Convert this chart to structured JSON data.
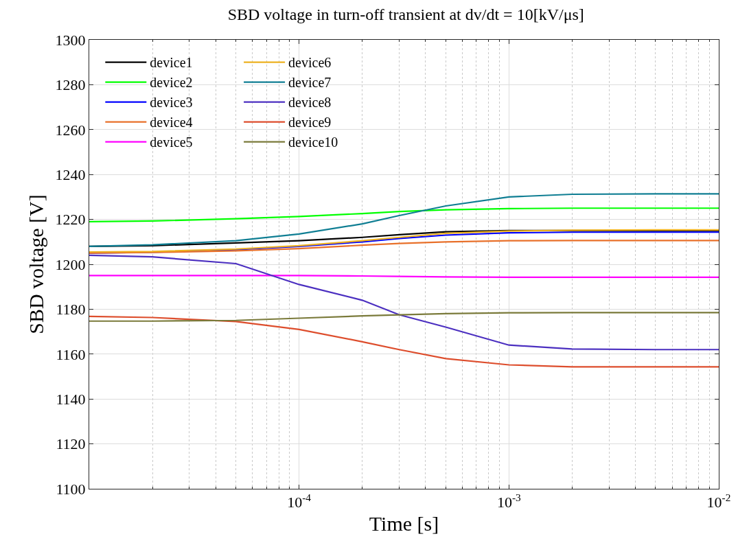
{
  "chart_data": {
    "type": "line",
    "title": "SBD voltage in turn-off transient at dv/dt = 10[kV/μs]",
    "xlabel": "Time [s]",
    "ylabel": "SBD voltage [V]",
    "x": [
      1e-05,
      2e-05,
      5e-05,
      0.0001,
      0.0002,
      0.0003,
      0.0005,
      0.001,
      0.002,
      0.005,
      0.01
    ],
    "series": [
      {
        "name": "device1",
        "color": "#000000",
        "values": [
          1208,
          1208.3,
          1209.5,
          1210.5,
          1212,
          1213.2,
          1214.5,
          1215,
          1215,
          1215,
          1215
        ]
      },
      {
        "name": "device2",
        "color": "#00ff00",
        "values": [
          1219,
          1219.3,
          1220.3,
          1221.3,
          1222.6,
          1223.5,
          1224.3,
          1224.8,
          1225,
          1225,
          1225
        ]
      },
      {
        "name": "device3",
        "color": "#0000ff",
        "values": [
          1205,
          1205.4,
          1206.5,
          1208,
          1210,
          1211.5,
          1213,
          1214,
          1214.3,
          1214.3,
          1214.3
        ]
      },
      {
        "name": "device4",
        "color": "#e8702a",
        "values": [
          1205,
          1205.3,
          1206,
          1207,
          1208.5,
          1209.3,
          1210,
          1210.5,
          1210.6,
          1210.6,
          1210.6
        ]
      },
      {
        "name": "device5",
        "color": "#ff00ff",
        "values": [
          1195,
          1195,
          1195,
          1195,
          1194.8,
          1194.6,
          1194.4,
          1194.2,
          1194.2,
          1194.2,
          1194.2
        ]
      },
      {
        "name": "device6",
        "color": "#edb120",
        "values": [
          1205.5,
          1205.7,
          1206.8,
          1208.3,
          1210.5,
          1212,
          1213.8,
          1214.8,
          1215.2,
          1215.3,
          1215.3
        ]
      },
      {
        "name": "device7",
        "color": "#0f7e93",
        "values": [
          1208,
          1208.7,
          1210.5,
          1213.5,
          1218,
          1221.7,
          1226,
          1230,
          1231.2,
          1231.4,
          1231.4
        ]
      },
      {
        "name": "device8",
        "color": "#4b2fc0",
        "values": [
          1204,
          1203.3,
          1200.3,
          1191,
          1184,
          1177.5,
          1172,
          1164,
          1162.3,
          1162,
          1162
        ]
      },
      {
        "name": "device9",
        "color": "#dd4d2c",
        "values": [
          1176.8,
          1176.3,
          1174.5,
          1171,
          1165.5,
          1162,
          1158,
          1155.2,
          1154.3,
          1154.3,
          1154.3
        ]
      },
      {
        "name": "device10",
        "color": "#7a7a3a",
        "values": [
          1174.7,
          1174.7,
          1175,
          1176,
          1177,
          1177.5,
          1178,
          1178.4,
          1178.5,
          1178.5,
          1178.5
        ]
      }
    ],
    "log": "x",
    "xlim": [
      1e-05,
      0.01
    ],
    "xticks": [
      {
        "value": 0.0001,
        "label": "10$^{-4}$"
      },
      {
        "value": 0.001,
        "label": "10$^{-3}$"
      },
      {
        "value": 0.01,
        "label": "10$^{-2}$"
      }
    ],
    "ylim": [
      1100,
      1300
    ],
    "yticks": [
      1100,
      1120,
      1140,
      1160,
      1180,
      1200,
      1220,
      1240,
      1260,
      1280,
      1300
    ],
    "grid": true,
    "legend": "top left",
    "marker": "none",
    "line_style": "solid"
  }
}
